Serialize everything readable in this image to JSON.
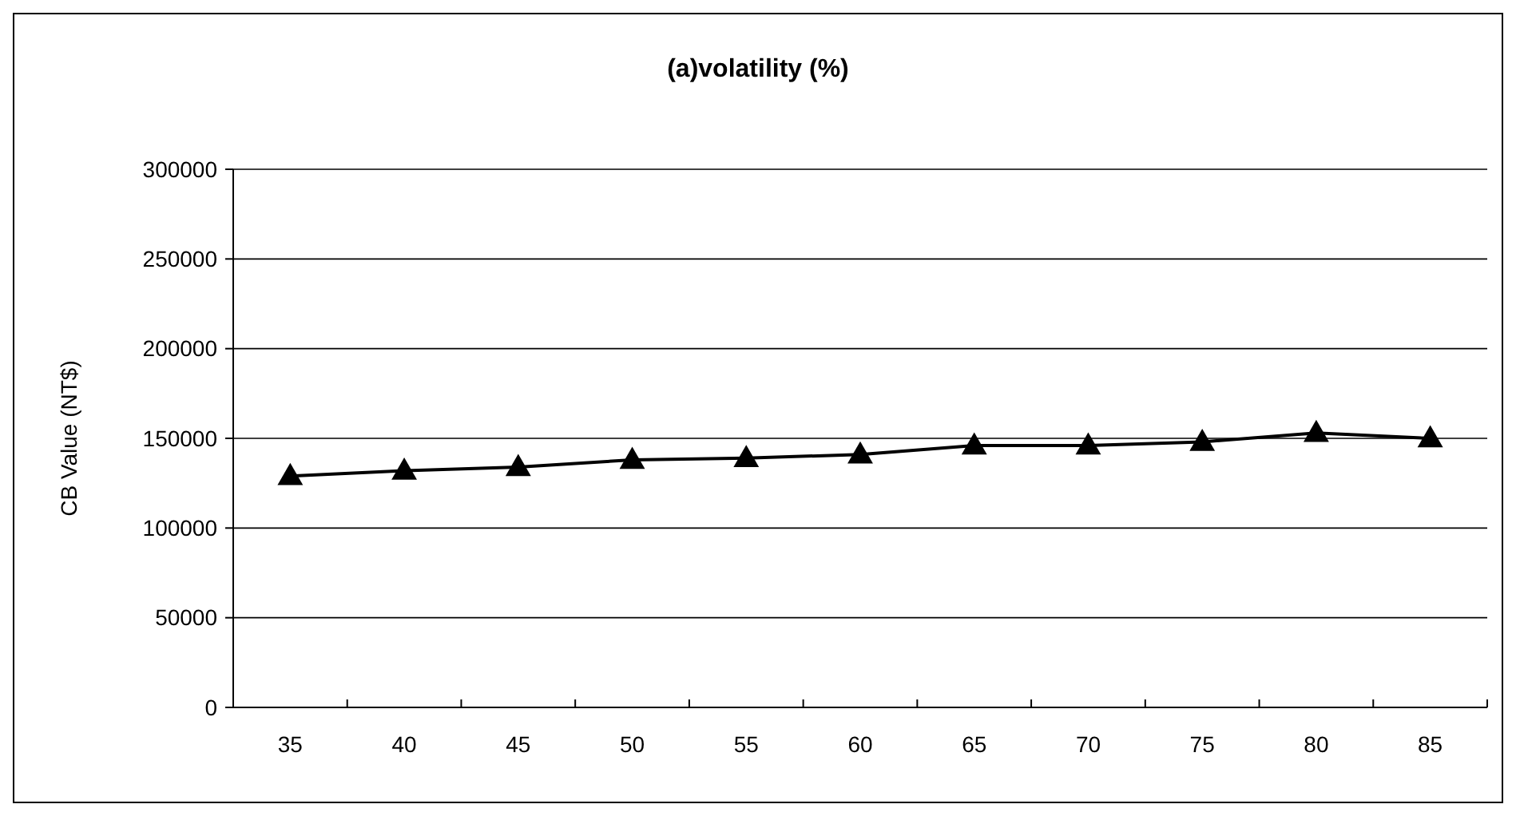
{
  "chart_data": {
    "type": "line",
    "title": "(a)volatility (%)",
    "ylabel": "CB Value (NT$)",
    "categories": [
      "35",
      "40",
      "45",
      "50",
      "55",
      "60",
      "65",
      "70",
      "75",
      "80",
      "85"
    ],
    "series": [
      {
        "color": "#000000",
        "values": [
          129000,
          132000,
          134000,
          138000,
          139000,
          141000,
          146000,
          146000,
          148000,
          153000,
          150000
        ]
      }
    ],
    "ylim": [
      0,
      300000
    ],
    "yticks": [
      0,
      50000,
      100000,
      150000,
      200000,
      250000,
      300000
    ],
    "grid": "y",
    "marker": "triangle",
    "line_style": "solid"
  }
}
